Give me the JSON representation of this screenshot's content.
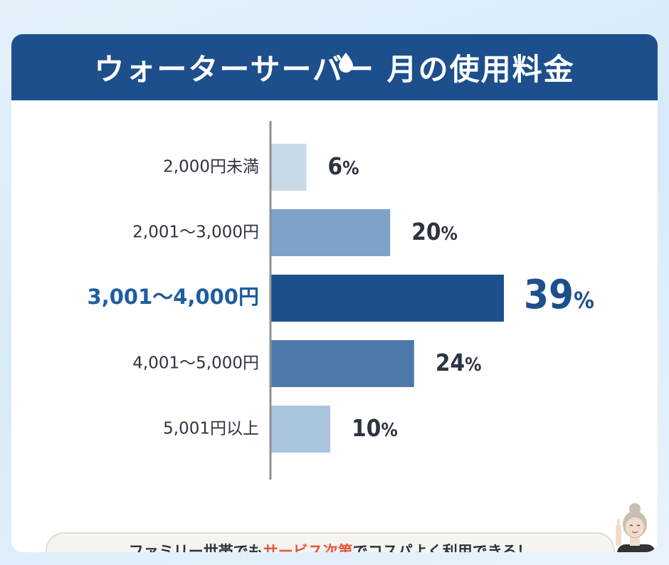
{
  "header": {
    "title": "ウォーターサーバー 月の使用料金"
  },
  "chart_data": {
    "type": "bar",
    "orientation": "horizontal",
    "title": "ウォーターサーバー 月の使用料金",
    "categories": [
      "2,000円未満",
      "2,001〜3,000円",
      "3,001〜4,000円",
      "4,001〜5,000円",
      "5,001円以上"
    ],
    "values": [
      6,
      20,
      39,
      24,
      10
    ],
    "value_labels": [
      "6",
      "20",
      "39",
      "24",
      "10"
    ],
    "unit": "%",
    "highlight_index": 2,
    "xlim": [
      0,
      39
    ],
    "bar_colors": [
      "#c8d9e8",
      "#7ea2c8",
      "#1d4f8c",
      "#4e79ab",
      "#a9c4dd"
    ],
    "label_colors": [
      "#2d3340",
      "#2d3340",
      "#1f5d9e",
      "#2d3340",
      "#2d3340"
    ],
    "value_colors": [
      "#2d3340",
      "#2d3340",
      "#1d4f8c",
      "#2d3340",
      "#2d3340"
    ]
  },
  "footer": {
    "text_before": "ファミリー世帯でも",
    "text_highlight": "サービス次第",
    "text_after": "でコスパよく利用できる！",
    "highlight_color": "#e3583e"
  },
  "icons": {
    "header_icon": "water-drop-icon",
    "footer_icon": "person-pointing-icon"
  }
}
